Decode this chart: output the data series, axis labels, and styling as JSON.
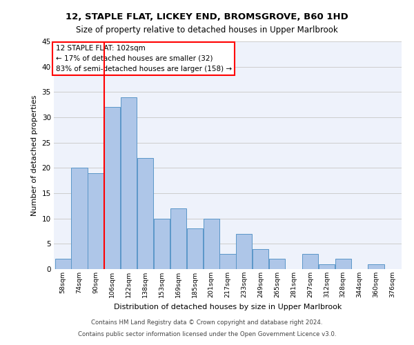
{
  "title1": "12, STAPLE FLAT, LICKEY END, BROMSGROVE, B60 1HD",
  "title2": "Size of property relative to detached houses in Upper Marlbrook",
  "xlabel": "Distribution of detached houses by size in Upper Marlbrook",
  "ylabel": "Number of detached properties",
  "bin_labels": [
    "58sqm",
    "74sqm",
    "90sqm",
    "106sqm",
    "122sqm",
    "138sqm",
    "153sqm",
    "169sqm",
    "185sqm",
    "201sqm",
    "217sqm",
    "233sqm",
    "249sqm",
    "265sqm",
    "281sqm",
    "297sqm",
    "312sqm",
    "328sqm",
    "344sqm",
    "360sqm",
    "376sqm"
  ],
  "bar_heights": [
    2,
    20,
    19,
    32,
    34,
    22,
    10,
    12,
    8,
    10,
    3,
    7,
    4,
    2,
    0,
    3,
    1,
    2,
    0,
    1,
    0
  ],
  "bar_color": "#aec6e8",
  "bar_edge_color": "#5a96c8",
  "background_color": "#eef2fb",
  "grid_color": "#cccccc",
  "vline_color": "red",
  "vline_x": 2.5,
  "annotation_text": "12 STAPLE FLAT: 102sqm\n← 17% of detached houses are smaller (32)\n83% of semi-detached houses are larger (158) →",
  "annotation_box_color": "white",
  "annotation_box_edge": "red",
  "ylim": [
    0,
    45
  ],
  "yticks": [
    0,
    5,
    10,
    15,
    20,
    25,
    30,
    35,
    40,
    45
  ],
  "footer1": "Contains HM Land Registry data © Crown copyright and database right 2024.",
  "footer2": "Contains public sector information licensed under the Open Government Licence v3.0."
}
